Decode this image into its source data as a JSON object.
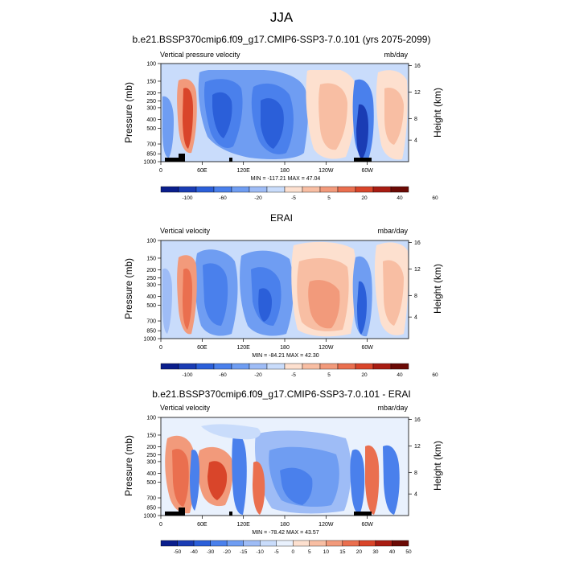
{
  "main_title": "JJA",
  "colors": {
    "cb_levels_12": [
      "#0a1e8c",
      "#1a3cb4",
      "#2b5fd9",
      "#4a80ec",
      "#6f9df2",
      "#9ebcf6",
      "#c9dcfb",
      "#fde0cf",
      "#f8bea3",
      "#f29a7b",
      "#ea6f4f",
      "#d9452a",
      "#a81c12",
      "#6b0a05"
    ],
    "cb_levels_diff": [
      "#0a1e8c",
      "#1a3cb4",
      "#2b5fd9",
      "#4a80ec",
      "#6f9df2",
      "#9ebcf6",
      "#c9dcfb",
      "#e9f1fd",
      "#fde0cf",
      "#f8bea3",
      "#f29a7b",
      "#ea6f4f",
      "#d9452a",
      "#a81c12",
      "#6b0a05"
    ]
  },
  "chart_data": [
    {
      "type": "heatmap",
      "title": "b.e21.BSSP370cmip6.f09_g17.CMIP6-SSP3-7.0.101 (yrs 2075-2099)",
      "left_label": "Vertical pressure velocity",
      "right_label": "mb/day",
      "ylabel": "Pressure (mb)",
      "ylabel_right": "Height (km)",
      "y_ticks": [
        "100",
        "150",
        "200",
        "250",
        "300",
        "400",
        "500",
        "700",
        "850",
        "1000"
      ],
      "y_right_ticks": [
        "16",
        "12",
        "8",
        "4"
      ],
      "x_ticks": [
        "0",
        "60E",
        "120E",
        "180",
        "120W",
        "60W"
      ],
      "minmax": "MIN = -117.21   MAX =  47.04",
      "colorbar_labels": [
        "-100",
        "-60",
        "-20",
        "-5",
        "5",
        "20",
        "40",
        "60"
      ]
    },
    {
      "type": "heatmap",
      "title": "ERAI",
      "left_label": "Vertical velocity",
      "right_label": "mbar/day",
      "ylabel": "Pressure (mb)",
      "ylabel_right": "Height (km)",
      "y_ticks": [
        "100",
        "150",
        "200",
        "250",
        "300",
        "400",
        "500",
        "700",
        "850",
        "1000"
      ],
      "y_right_ticks": [
        "16",
        "12",
        "8",
        "4"
      ],
      "x_ticks": [
        "0",
        "60E",
        "120E",
        "180",
        "120W",
        "60W"
      ],
      "minmax": "MIN = -84.21   MAX =  42.30",
      "colorbar_labels": [
        "-100",
        "-60",
        "-20",
        "-5",
        "5",
        "20",
        "40",
        "60"
      ]
    },
    {
      "type": "heatmap",
      "title": "b.e21.BSSP370cmip6.f09_g17.CMIP6-SSP3-7.0.101 - ERAI",
      "left_label": "Vertical velocity",
      "right_label": "mbar/day",
      "ylabel": "Pressure (mb)",
      "ylabel_right": "Height (km)",
      "y_ticks": [
        "100",
        "150",
        "200",
        "250",
        "300",
        "400",
        "500",
        "700",
        "850",
        "1000"
      ],
      "y_right_ticks": [
        "16",
        "12",
        "8",
        "4"
      ],
      "x_ticks": [
        "0",
        "60E",
        "120E",
        "180",
        "120W",
        "60W"
      ],
      "minmax": "MIN = -78.42   MAX =  43.57",
      "colorbar_labels": [
        "-50",
        "-40",
        "-30",
        "-20",
        "-15",
        "-10",
        "-5",
        "0",
        "5",
        "10",
        "15",
        "20",
        "30",
        "40",
        "50"
      ]
    }
  ]
}
